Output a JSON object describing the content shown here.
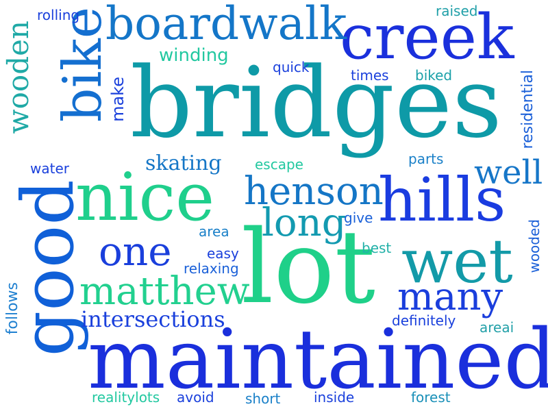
{
  "words": [
    {
      "text": "bridges",
      "color": "#0e9aa7"
    },
    {
      "text": "maintained",
      "color": "#1a2fdc"
    },
    {
      "text": "lot",
      "color": "#1fd089"
    },
    {
      "text": "good",
      "color": "#1060d8"
    },
    {
      "text": "nice",
      "color": "#1fcf8c"
    },
    {
      "text": "creek",
      "color": "#1a30dc"
    },
    {
      "text": "hills",
      "color": "#1a3ce0"
    },
    {
      "text": "bike",
      "color": "#146fd0"
    },
    {
      "text": "wet",
      "color": "#139aa8"
    },
    {
      "text": "boardwalk",
      "color": "#1476c8"
    },
    {
      "text": "henson",
      "color": "#1576c6"
    },
    {
      "text": "matthew",
      "color": "#22d08f"
    },
    {
      "text": "one",
      "color": "#1a3fdc"
    },
    {
      "text": "many",
      "color": "#1a3edc"
    },
    {
      "text": "long",
      "color": "#139ab0"
    },
    {
      "text": "well",
      "color": "#1676c8"
    },
    {
      "text": "wooden",
      "color": "#1fa9a6"
    },
    {
      "text": "intersections",
      "color": "#1a40dc"
    },
    {
      "text": "skating",
      "color": "#1576c6"
    },
    {
      "text": "winding",
      "color": "#22c8a0"
    },
    {
      "text": "make",
      "color": "#1a40dc"
    },
    {
      "text": "residential",
      "color": "#1a5fd8"
    },
    {
      "text": "follows",
      "color": "#1f80d0"
    },
    {
      "text": "wooded",
      "color": "#1a5fd8"
    },
    {
      "text": "rolling",
      "color": "#1a40dc"
    },
    {
      "text": "raised",
      "color": "#1f9fa8"
    },
    {
      "text": "quick",
      "color": "#1a40dc"
    },
    {
      "text": "times",
      "color": "#1a40dc"
    },
    {
      "text": "biked",
      "color": "#1aa0a8"
    },
    {
      "text": "water",
      "color": "#1a40dc"
    },
    {
      "text": "escape",
      "color": "#22c8a0"
    },
    {
      "text": "parts",
      "color": "#1a80c8"
    },
    {
      "text": "area",
      "color": "#1a80c8"
    },
    {
      "text": "give",
      "color": "#1a60d8"
    },
    {
      "text": "easy",
      "color": "#1a40dc"
    },
    {
      "text": "relaxing",
      "color": "#1a60d8"
    },
    {
      "text": "best",
      "color": "#22b0a8"
    },
    {
      "text": "definitely",
      "color": "#1a40dc"
    },
    {
      "text": "areai",
      "color": "#22a0a8"
    },
    {
      "text": "realitylots",
      "color": "#22c8a0"
    },
    {
      "text": "avoid",
      "color": "#1a40dc"
    },
    {
      "text": "short",
      "color": "#1a80c8"
    },
    {
      "text": "inside",
      "color": "#1a40dc"
    },
    {
      "text": "forest",
      "color": "#1a90b8"
    }
  ]
}
